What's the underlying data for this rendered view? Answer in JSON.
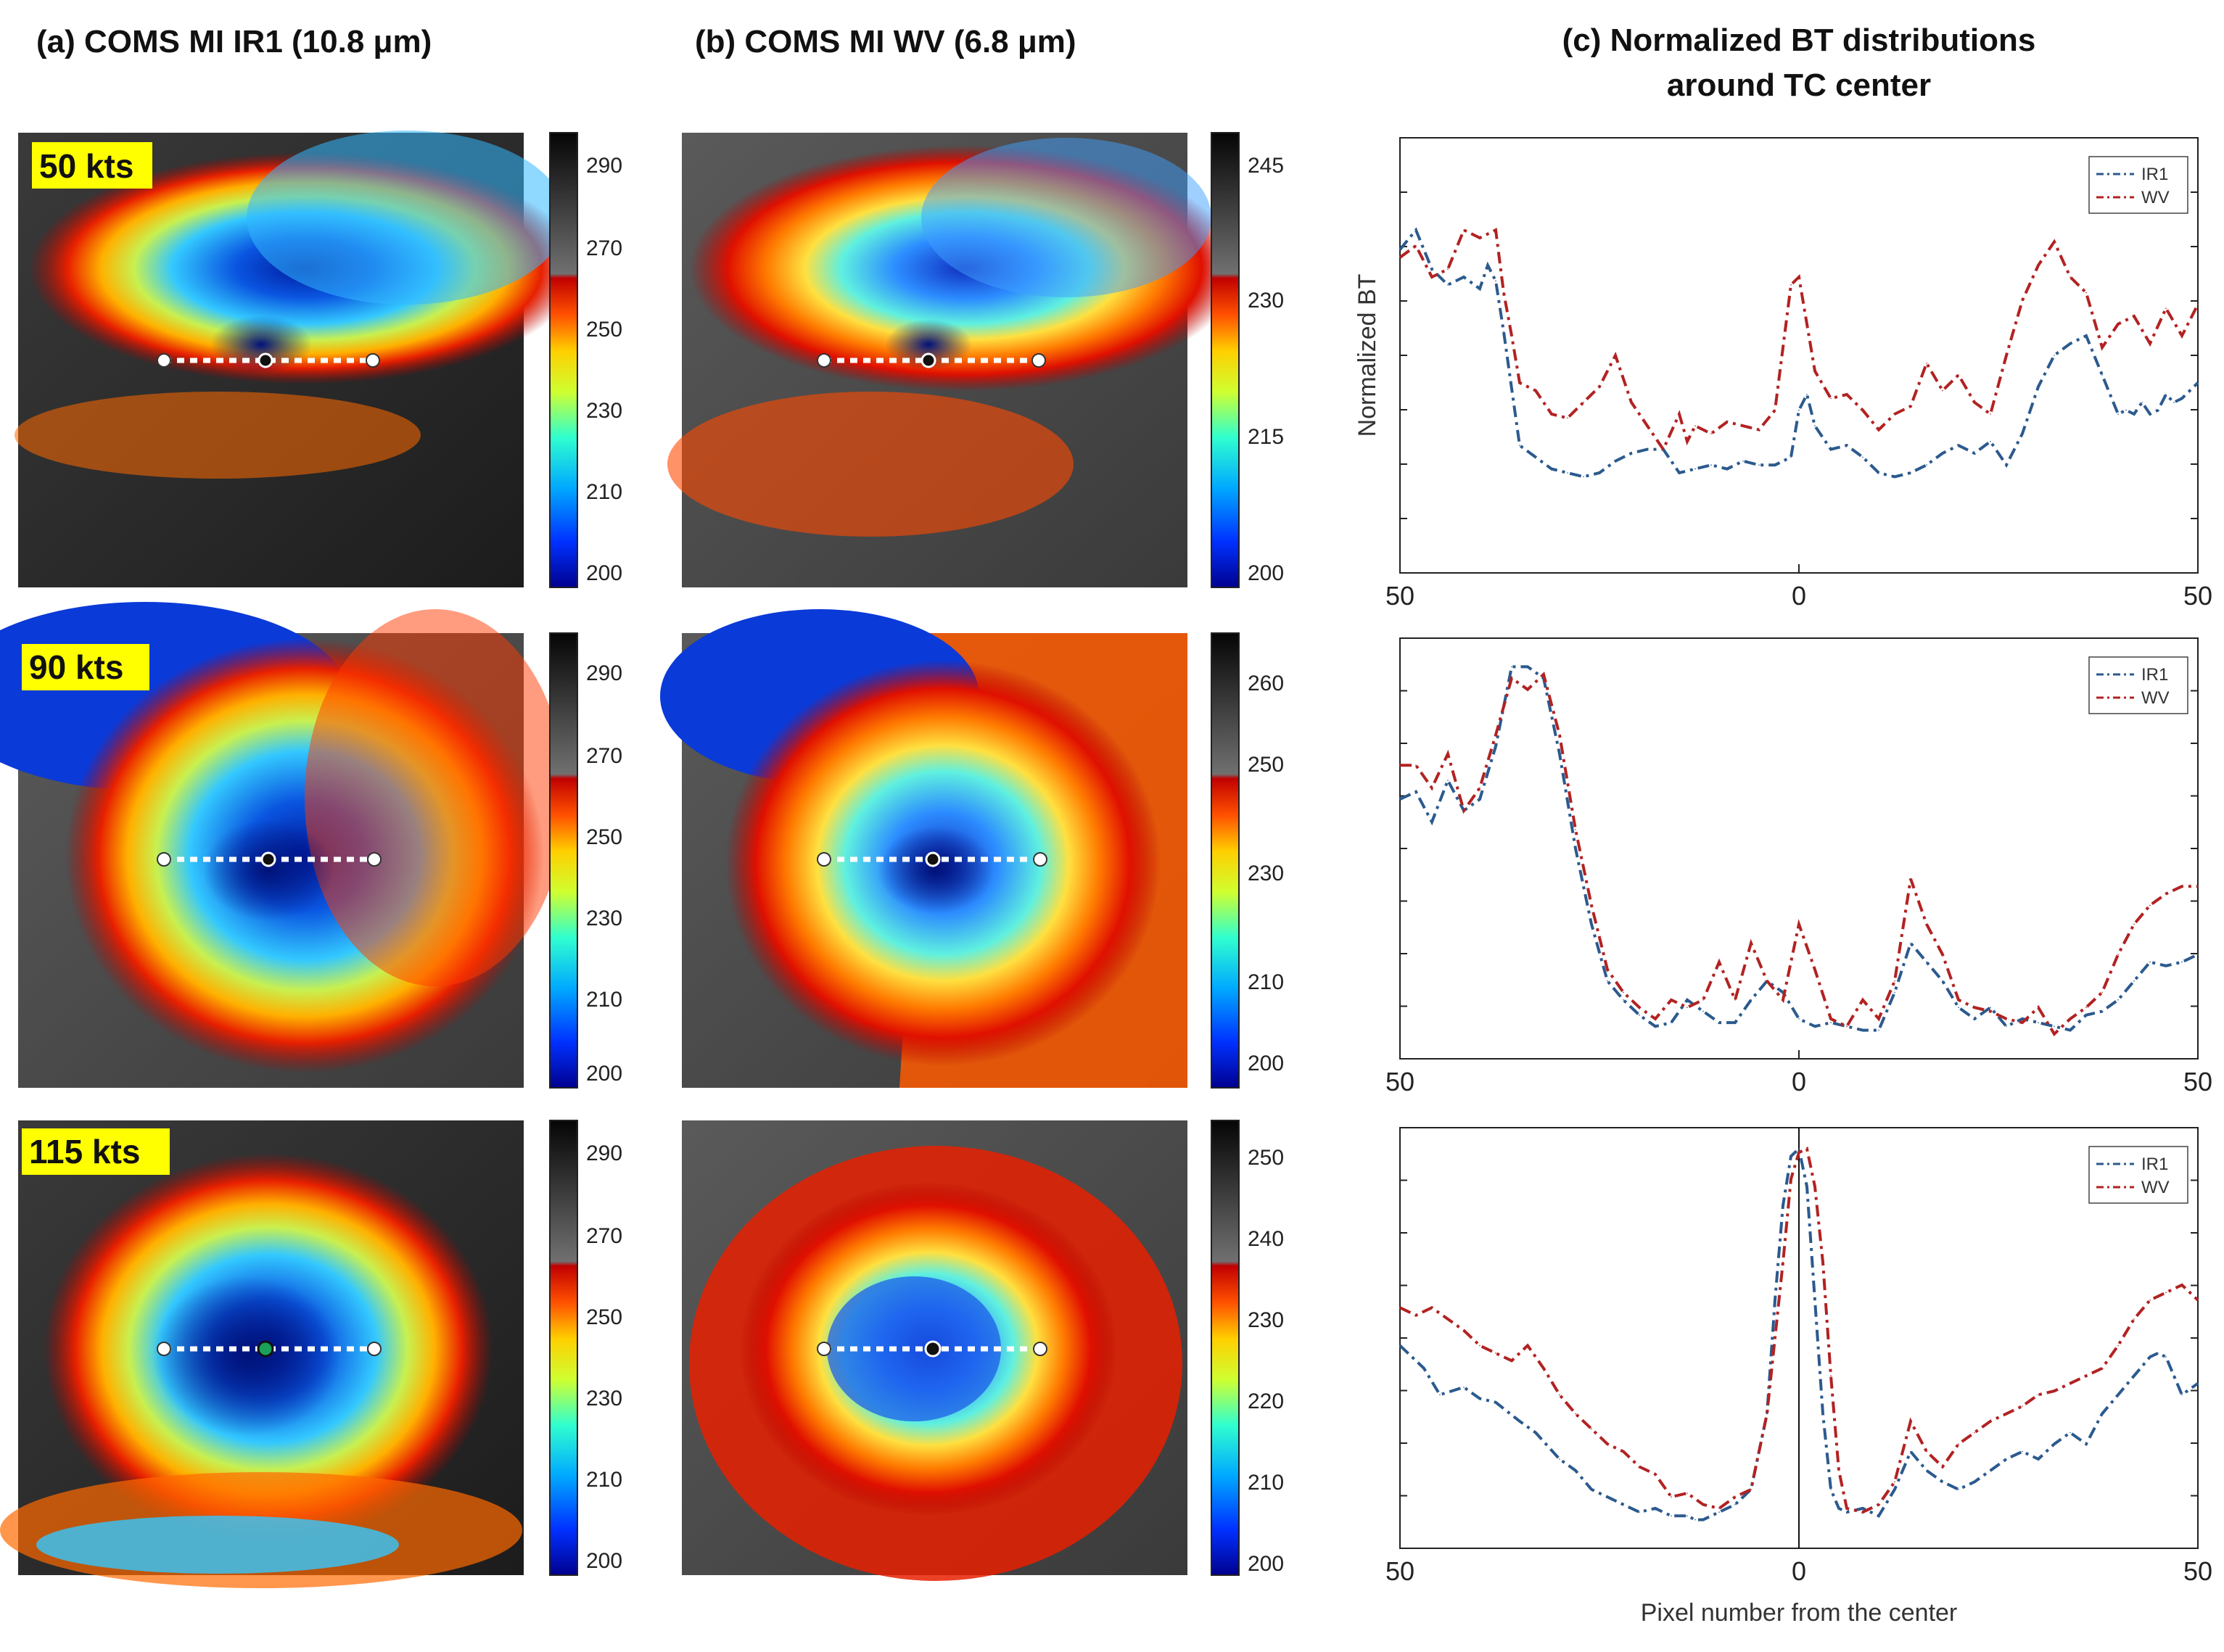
{
  "titles": {
    "panel_a": "(a) COMS MI IR1 (10.8 μm)",
    "panel_b": "(b) COMS MI WV (6.8 μm)",
    "panel_c_line1": "(c) Normalized BT distributions",
    "panel_c_line2": "around TC center"
  },
  "rows": [
    {
      "intensity": "50 kts",
      "ir_ticks": [
        "290",
        "270",
        "250",
        "230",
        "210",
        "200"
      ],
      "wv_ticks": [
        "245",
        "230",
        "215",
        "200"
      ]
    },
    {
      "intensity": "90 kts",
      "ir_ticks": [
        "290",
        "270",
        "250",
        "230",
        "210",
        "200"
      ],
      "wv_ticks": [
        "260",
        "250",
        "230",
        "210",
        "200"
      ]
    },
    {
      "intensity": "115 kts",
      "ir_ticks": [
        "290",
        "270",
        "250",
        "230",
        "210",
        "200"
      ],
      "wv_ticks": [
        "250",
        "240",
        "230",
        "220",
        "210",
        "200"
      ]
    }
  ],
  "colors": {
    "ir1": "#2b5a8e",
    "wv": "#b22222",
    "badge": "#ffff00"
  },
  "chart_data": [
    {
      "type": "line",
      "title": "",
      "xlabel": "",
      "ylabel": "Normalized BT",
      "x_tick_labels": [
        "50",
        "0",
        "50"
      ],
      "xlim": [
        -50,
        50
      ],
      "ylim": [
        0,
        1
      ],
      "legend": "top-right",
      "series": [
        {
          "name": "IR1",
          "x": [
            -50,
            -48,
            -46,
            -44,
            -42,
            -40,
            -39,
            -38,
            -37,
            -35,
            -33,
            -31,
            -29,
            -27,
            -25,
            -23,
            -21,
            -19,
            -17,
            -15,
            -13,
            -11,
            -9,
            -7,
            -5,
            -3,
            -1,
            0,
            1,
            2,
            4,
            6,
            8,
            10,
            12,
            14,
            16,
            18,
            20,
            22,
            24,
            26,
            28,
            30,
            32,
            34,
            36,
            38,
            40,
            41,
            42,
            43,
            44,
            45,
            46,
            47,
            48,
            50
          ],
          "y": [
            0.77,
            0.82,
            0.72,
            0.68,
            0.7,
            0.67,
            0.73,
            0.69,
            0.56,
            0.27,
            0.24,
            0.21,
            0.2,
            0.19,
            0.2,
            0.23,
            0.25,
            0.26,
            0.26,
            0.2,
            0.21,
            0.22,
            0.21,
            0.23,
            0.22,
            0.22,
            0.24,
            0.36,
            0.4,
            0.32,
            0.26,
            0.27,
            0.24,
            0.2,
            0.19,
            0.2,
            0.22,
            0.25,
            0.27,
            0.25,
            0.28,
            0.22,
            0.3,
            0.42,
            0.5,
            0.53,
            0.55,
            0.45,
            0.35,
            0.36,
            0.35,
            0.38,
            0.35,
            0.36,
            0.4,
            0.38,
            0.39,
            0.43
          ]
        },
        {
          "name": "WV",
          "x": [
            -50,
            -48,
            -46,
            -44,
            -42,
            -40,
            -38,
            -37,
            -36,
            -35,
            -33,
            -31,
            -29,
            -27,
            -25,
            -23,
            -21,
            -19,
            -17,
            -15,
            -14,
            -13,
            -11,
            -9,
            -7,
            -5,
            -3,
            -1,
            0,
            1,
            2,
            4,
            6,
            8,
            10,
            12,
            14,
            16,
            18,
            20,
            22,
            24,
            26,
            28,
            30,
            32,
            34,
            36,
            38,
            40,
            42,
            44,
            46,
            48,
            50
          ],
          "y": [
            0.75,
            0.78,
            0.7,
            0.72,
            0.82,
            0.8,
            0.82,
            0.66,
            0.55,
            0.43,
            0.41,
            0.35,
            0.34,
            0.38,
            0.42,
            0.5,
            0.38,
            0.32,
            0.26,
            0.35,
            0.28,
            0.32,
            0.3,
            0.33,
            0.32,
            0.31,
            0.36,
            0.68,
            0.7,
            0.58,
            0.46,
            0.39,
            0.4,
            0.36,
            0.31,
            0.35,
            0.37,
            0.48,
            0.41,
            0.45,
            0.38,
            0.35,
            0.5,
            0.64,
            0.73,
            0.79,
            0.7,
            0.66,
            0.52,
            0.58,
            0.6,
            0.53,
            0.62,
            0.55,
            0.63
          ]
        }
      ]
    },
    {
      "type": "line",
      "title": "",
      "xlabel": "",
      "ylabel": "",
      "x_tick_labels": [
        "50",
        "0",
        "50"
      ],
      "xlim": [
        -50,
        50
      ],
      "ylim": [
        0,
        1
      ],
      "legend": "top-right",
      "series": [
        {
          "name": "IR1",
          "x": [
            -50,
            -48,
            -46,
            -44,
            -42,
            -40,
            -38,
            -36,
            -34,
            -32,
            -30,
            -28,
            -26,
            -24,
            -22,
            -20,
            -18,
            -16,
            -14,
            -12,
            -10,
            -8,
            -6,
            -4,
            -2,
            0,
            2,
            4,
            6,
            8,
            10,
            12,
            14,
            16,
            18,
            20,
            22,
            24,
            26,
            28,
            30,
            32,
            34,
            36,
            38,
            40,
            42,
            44,
            46,
            48,
            50
          ],
          "y": [
            0.63,
            0.65,
            0.57,
            0.68,
            0.6,
            0.63,
            0.77,
            0.98,
            0.98,
            0.95,
            0.75,
            0.5,
            0.3,
            0.15,
            0.1,
            0.06,
            0.03,
            0.04,
            0.1,
            0.07,
            0.04,
            0.04,
            0.1,
            0.15,
            0.12,
            0.05,
            0.03,
            0.04,
            0.03,
            0.02,
            0.02,
            0.12,
            0.25,
            0.2,
            0.15,
            0.08,
            0.05,
            0.08,
            0.03,
            0.05,
            0.04,
            0.03,
            0.02,
            0.06,
            0.07,
            0.1,
            0.15,
            0.2,
            0.19,
            0.2,
            0.22
          ]
        },
        {
          "name": "WV",
          "x": [
            -50,
            -48,
            -46,
            -44,
            -42,
            -40,
            -38,
            -36,
            -34,
            -32,
            -30,
            -28,
            -26,
            -24,
            -22,
            -20,
            -18,
            -16,
            -14,
            -12,
            -10,
            -8,
            -6,
            -4,
            -2,
            0,
            2,
            4,
            6,
            8,
            10,
            12,
            14,
            16,
            18,
            20,
            22,
            24,
            26,
            28,
            30,
            32,
            34,
            36,
            38,
            40,
            42,
            44,
            46,
            48,
            50
          ],
          "y": [
            0.72,
            0.72,
            0.66,
            0.75,
            0.6,
            0.66,
            0.8,
            0.95,
            0.92,
            0.96,
            0.8,
            0.55,
            0.35,
            0.18,
            0.12,
            0.08,
            0.05,
            0.1,
            0.08,
            0.1,
            0.2,
            0.1,
            0.25,
            0.15,
            0.1,
            0.3,
            0.18,
            0.05,
            0.03,
            0.1,
            0.05,
            0.15,
            0.42,
            0.3,
            0.22,
            0.1,
            0.08,
            0.07,
            0.05,
            0.04,
            0.08,
            0.01,
            0.05,
            0.08,
            0.12,
            0.22,
            0.3,
            0.35,
            0.38,
            0.4,
            0.4
          ]
        }
      ]
    },
    {
      "type": "line",
      "title": "",
      "xlabel": "Pixel number from the center",
      "ylabel": "",
      "x_tick_labels": [
        "50",
        "0",
        "50"
      ],
      "xlim": [
        -50,
        50
      ],
      "ylim": [
        0,
        1
      ],
      "legend": "top-right",
      "center_line": 0,
      "series": [
        {
          "name": "IR1",
          "x": [
            -50,
            -47,
            -45,
            -42,
            -40,
            -38,
            -35,
            -33,
            -30,
            -28,
            -26,
            -24,
            -22,
            -20,
            -18,
            -16,
            -14,
            -13,
            -12,
            -10,
            -8,
            -6,
            -4,
            -3,
            -2,
            -1,
            0,
            1,
            2,
            3,
            4,
            5,
            6,
            8,
            10,
            12,
            14,
            16,
            18,
            20,
            22,
            24,
            26,
            28,
            30,
            32,
            34,
            36,
            38,
            40,
            42,
            44,
            45,
            46,
            47,
            48,
            50
          ],
          "y": [
            0.48,
            0.42,
            0.35,
            0.37,
            0.34,
            0.33,
            0.28,
            0.25,
            0.18,
            0.15,
            0.1,
            0.08,
            0.06,
            0.04,
            0.05,
            0.03,
            0.03,
            0.02,
            0.02,
            0.04,
            0.06,
            0.1,
            0.3,
            0.6,
            0.85,
            0.98,
            1.0,
            0.9,
            0.6,
            0.3,
            0.1,
            0.05,
            0.04,
            0.05,
            0.03,
            0.1,
            0.2,
            0.15,
            0.12,
            0.1,
            0.12,
            0.15,
            0.18,
            0.2,
            0.18,
            0.22,
            0.25,
            0.22,
            0.3,
            0.35,
            0.4,
            0.45,
            0.46,
            0.45,
            0.4,
            0.35,
            0.38
          ]
        },
        {
          "name": "WV",
          "x": [
            -50,
            -48,
            -46,
            -44,
            -42,
            -40,
            -38,
            -36,
            -34,
            -32,
            -30,
            -28,
            -26,
            -24,
            -22,
            -20,
            -18,
            -16,
            -14,
            -12,
            -10,
            -8,
            -6,
            -4,
            -2,
            -1,
            0,
            1,
            2,
            3,
            4,
            5,
            6,
            8,
            10,
            12,
            14,
            16,
            18,
            20,
            22,
            24,
            26,
            28,
            30,
            32,
            34,
            36,
            38,
            40,
            42,
            44,
            46,
            48,
            50
          ],
          "y": [
            0.58,
            0.56,
            0.58,
            0.55,
            0.52,
            0.48,
            0.46,
            0.44,
            0.48,
            0.42,
            0.35,
            0.3,
            0.26,
            0.22,
            0.2,
            0.16,
            0.14,
            0.08,
            0.09,
            0.06,
            0.05,
            0.08,
            0.1,
            0.3,
            0.7,
            0.92,
            0.99,
            1.0,
            0.9,
            0.7,
            0.4,
            0.15,
            0.05,
            0.04,
            0.06,
            0.12,
            0.28,
            0.2,
            0.16,
            0.22,
            0.25,
            0.28,
            0.3,
            0.32,
            0.35,
            0.36,
            0.38,
            0.4,
            0.42,
            0.48,
            0.55,
            0.6,
            0.62,
            0.64,
            0.6
          ]
        }
      ]
    }
  ]
}
